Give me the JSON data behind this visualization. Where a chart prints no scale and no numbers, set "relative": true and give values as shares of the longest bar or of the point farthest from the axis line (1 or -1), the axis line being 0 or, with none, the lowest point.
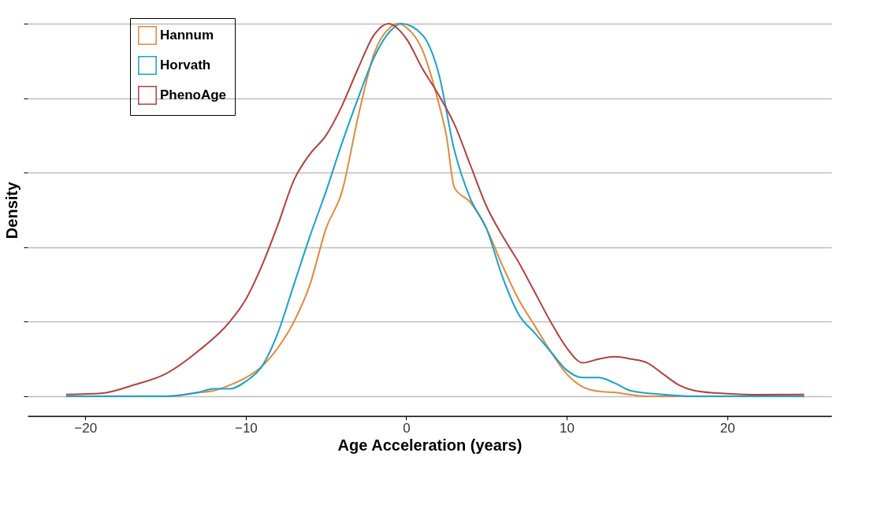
{
  "chart_data": {
    "type": "line",
    "relative": true,
    "xlabel": "Age Acceleration (years)",
    "ylabel": "Density",
    "xlim": [
      -23.6,
      26.5
    ],
    "xticks": [
      {
        "value": -20,
        "label": "−20"
      },
      {
        "value": -10,
        "label": "−10"
      },
      0,
      10,
      20
    ],
    "grid": "y",
    "legend": "top left",
    "marker": "none",
    "line_style": "solid",
    "series": [
      {
        "name": "Hannum",
        "color": "#e08a3c",
        "x": [
          -21.2,
          -15,
          -13,
          -12,
          -11,
          -10,
          -9,
          -8,
          -7,
          -6,
          -5,
          -4,
          -3,
          -2,
          -1,
          -0.5,
          0,
          1,
          2,
          2.5,
          3,
          4,
          5,
          6,
          7,
          8,
          9,
          10,
          11,
          12,
          13,
          15,
          24.8
        ],
        "values": [
          0,
          0,
          0.01,
          0.015,
          0.03,
          0.05,
          0.08,
          0.13,
          0.2,
          0.3,
          0.45,
          0.55,
          0.75,
          0.92,
          0.99,
          1.0,
          0.99,
          0.93,
          0.79,
          0.7,
          0.56,
          0.52,
          0.45,
          0.35,
          0.26,
          0.19,
          0.12,
          0.06,
          0.025,
          0.013,
          0.01,
          0,
          0
        ]
      },
      {
        "name": "Horvath",
        "color": "#1aa0d0",
        "x": [
          -21.2,
          -15,
          -13,
          -12,
          -11,
          -10,
          -9,
          -8,
          -7,
          -6,
          -5,
          -4,
          -3,
          -2,
          -1,
          -0.3,
          1,
          2,
          3,
          4,
          5,
          6,
          7,
          8,
          9,
          10,
          11,
          12,
          13,
          14,
          16,
          18,
          24.8
        ],
        "values": [
          0,
          0,
          0.01,
          0.02,
          0.02,
          0.04,
          0.08,
          0.17,
          0.3,
          0.43,
          0.55,
          0.68,
          0.8,
          0.91,
          0.98,
          1.0,
          0.97,
          0.87,
          0.66,
          0.53,
          0.45,
          0.32,
          0.22,
          0.17,
          0.12,
          0.07,
          0.05,
          0.05,
          0.035,
          0.015,
          0.005,
          0,
          0
        ]
      },
      {
        "name": "PhenoAge",
        "color": "#b5403f",
        "x": [
          -21.2,
          -19,
          -17,
          -15,
          -13,
          -11,
          -10,
          -9,
          -8,
          -7,
          -6,
          -5,
          -4,
          -3,
          -2,
          -1.1,
          0,
          1,
          2,
          3,
          4,
          5,
          6,
          7,
          8,
          9,
          10,
          11,
          12,
          13,
          14,
          15,
          16,
          17,
          18,
          20,
          22,
          24.8
        ],
        "values": [
          0.005,
          0.008,
          0.03,
          0.06,
          0.12,
          0.2,
          0.26,
          0.35,
          0.46,
          0.58,
          0.65,
          0.7,
          0.78,
          0.88,
          0.97,
          1.0,
          0.96,
          0.88,
          0.81,
          0.73,
          0.62,
          0.51,
          0.43,
          0.36,
          0.28,
          0.2,
          0.13,
          0.09,
          0.1,
          0.106,
          0.1,
          0.09,
          0.06,
          0.03,
          0.015,
          0.007,
          0.004,
          0.005
        ]
      }
    ]
  }
}
